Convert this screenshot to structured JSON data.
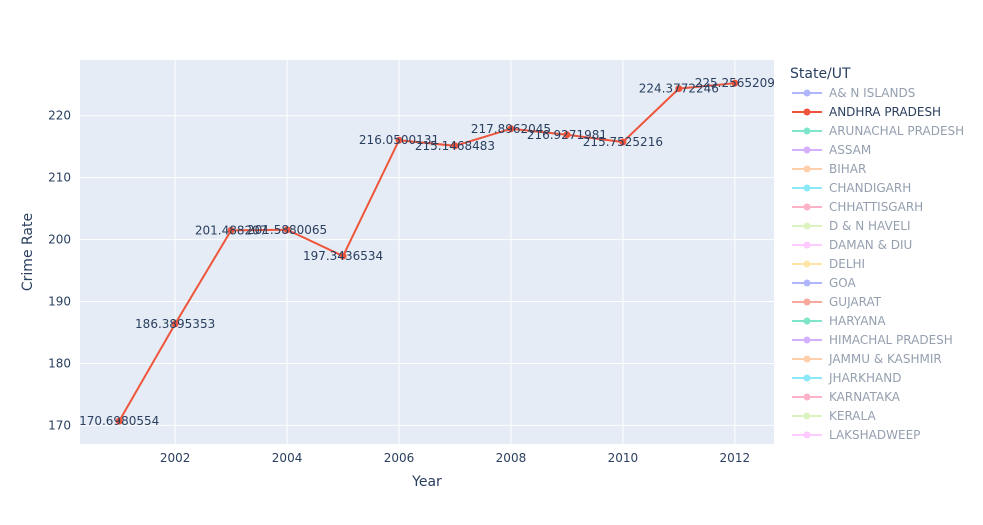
{
  "chart_data": {
    "type": "line",
    "xlabel": "Year",
    "ylabel": "Crime Rate",
    "xlim": [
      2000.3,
      2012.7
    ],
    "ylim": [
      167,
      229
    ],
    "x_ticks": [
      2002,
      2004,
      2006,
      2008,
      2010,
      2012
    ],
    "y_ticks": [
      170,
      180,
      190,
      200,
      210,
      220
    ],
    "grid": true,
    "legend_title": "State/UT",
    "legend_position": "right",
    "series": [
      {
        "name": "ANDHRA PRADESH",
        "color": "#EF553B",
        "x": [
          2001,
          2002,
          2003,
          2004,
          2005,
          2006,
          2007,
          2008,
          2009,
          2010,
          2011,
          2012
        ],
        "y": [
          170.6980554,
          186.3895353,
          201.488207,
          201.5880065,
          197.3436534,
          216.0500131,
          215.1468483,
          217.8962045,
          216.9271981,
          215.7525216,
          224.3772246,
          225.2565209
        ],
        "labels": [
          "170.6980554",
          "186.3895353",
          "201.488207",
          "201.5880065",
          "197.3436534",
          "216.0500131",
          "215.1468483",
          "217.8962045",
          "216.9271981",
          "215.7525216",
          "224.3772246",
          "225.2565209"
        ]
      }
    ],
    "legend_items": [
      {
        "name": "A& N ISLANDS",
        "color": "#636efa",
        "active": false
      },
      {
        "name": "ANDHRA PRADESH",
        "color": "#EF553B",
        "active": true
      },
      {
        "name": "ARUNACHAL PRADESH",
        "color": "#00cc96",
        "active": false
      },
      {
        "name": "ASSAM",
        "color": "#ab63fa",
        "active": false
      },
      {
        "name": "BIHAR",
        "color": "#FFA15A",
        "active": false
      },
      {
        "name": "CHANDIGARH",
        "color": "#19d3f3",
        "active": false
      },
      {
        "name": "CHHATTISGARH",
        "color": "#FF6692",
        "active": false
      },
      {
        "name": "D & N HAVELI",
        "color": "#B6E880",
        "active": false
      },
      {
        "name": "DAMAN & DIU",
        "color": "#FF97FF",
        "active": false
      },
      {
        "name": "DELHI",
        "color": "#FECB52",
        "active": false
      },
      {
        "name": "GOA",
        "color": "#636efa",
        "active": false
      },
      {
        "name": "GUJARAT",
        "color": "#EF553B",
        "active": false
      },
      {
        "name": "HARYANA",
        "color": "#00cc96",
        "active": false
      },
      {
        "name": "HIMACHAL PRADESH",
        "color": "#ab63fa",
        "active": false
      },
      {
        "name": "JAMMU & KASHMIR",
        "color": "#FFA15A",
        "active": false
      },
      {
        "name": "JHARKHAND",
        "color": "#19d3f3",
        "active": false
      },
      {
        "name": "KARNATAKA",
        "color": "#FF6692",
        "active": false
      },
      {
        "name": "KERALA",
        "color": "#B6E880",
        "active": false
      },
      {
        "name": "LAKSHADWEEP",
        "color": "#FF97FF",
        "active": false
      }
    ]
  }
}
